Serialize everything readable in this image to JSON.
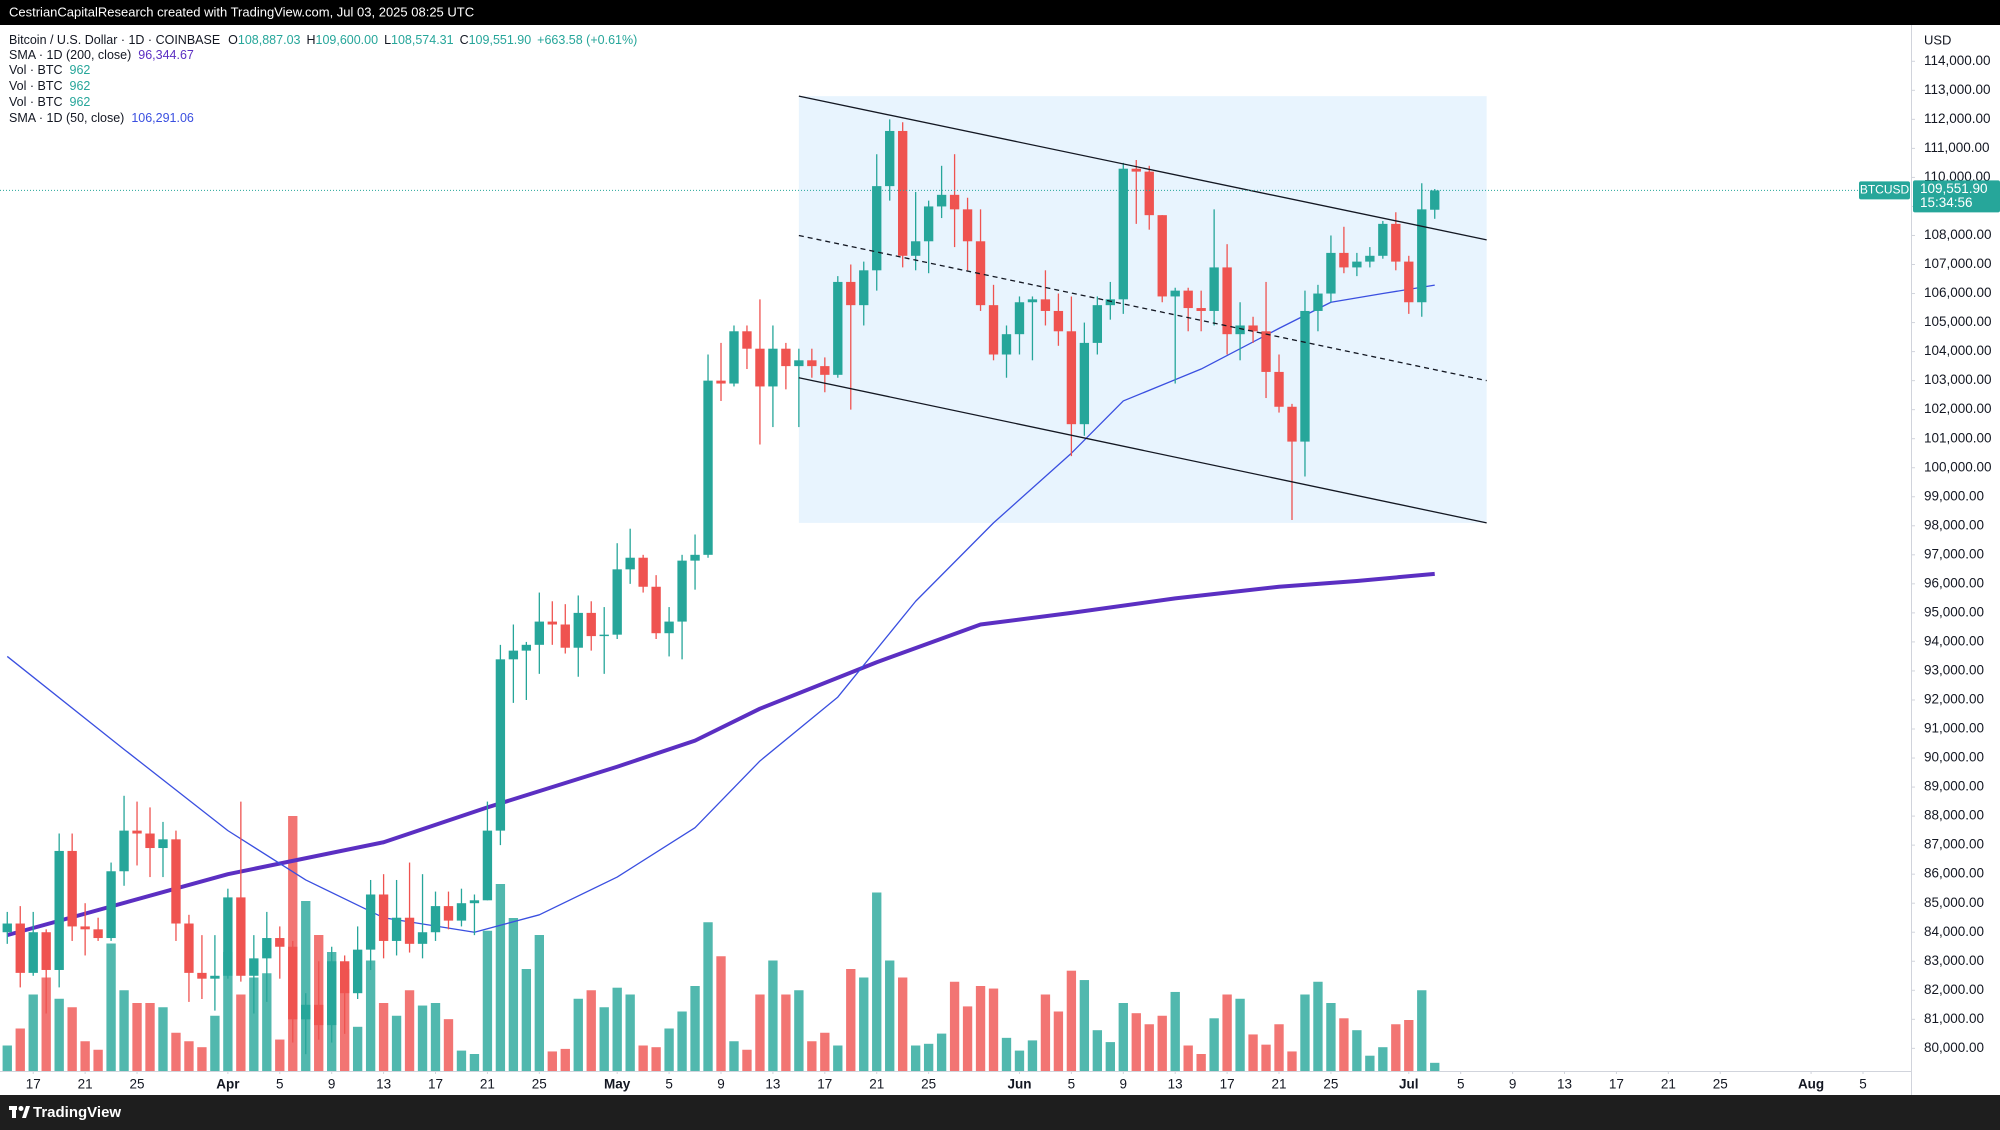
{
  "header": "CestrianCapitalResearch created with TradingView.com, Jul 03, 2025 08:25 UTC",
  "footer": "TradingView",
  "chart_data": {
    "type": "candlestick",
    "currency": "USD",
    "symbol": "Bitcoin / U.S. Dollar · 1D · COINBASE",
    "ohlc": [
      {
        "key": "O",
        "value_label": "108,887.03"
      },
      {
        "key": "H",
        "value_label": "109,600.00"
      },
      {
        "key": "L",
        "value_label": "108,574.31"
      },
      {
        "key": "C",
        "value_label": "109,551.90"
      }
    ],
    "change": "+663.58 (+0.61%)",
    "up_color": "#26a69a",
    "down_color": "#ef5350",
    "x": [
      -2,
      -1,
      0,
      1,
      2,
      3,
      4,
      5,
      6,
      7,
      8,
      9,
      10,
      11,
      12,
      13,
      14,
      15,
      16,
      17,
      18,
      19,
      20,
      21,
      22,
      23,
      24,
      25,
      26,
      27,
      28,
      29,
      30,
      31,
      32,
      33,
      34,
      35,
      36,
      37,
      38,
      39,
      40,
      41,
      42,
      43,
      44,
      45,
      46,
      47,
      48,
      49,
      50,
      51,
      52,
      53,
      54,
      55,
      56,
      57,
      58,
      59,
      60,
      61,
      62,
      63,
      64,
      65,
      66,
      67,
      68,
      69,
      70,
      71,
      72,
      73,
      74,
      75,
      76,
      77,
      78,
      79,
      80,
      81,
      82,
      83,
      84,
      85,
      86,
      87,
      88,
      89,
      90,
      91,
      92,
      93,
      94,
      95,
      96,
      97,
      98,
      99,
      100,
      101,
      102,
      103,
      104,
      105,
      106,
      107,
      108
    ],
    "open": [
      84000,
      84300,
      82600,
      84000,
      82700,
      86800,
      84200,
      84100,
      83800,
      86100,
      87500,
      87400,
      86900,
      87200,
      84300,
      82600,
      82400,
      82500,
      85200,
      82500,
      83100,
      83800,
      83500,
      81000,
      81500,
      80800,
      83000,
      81900,
      83400,
      85300,
      83700,
      84500,
      83600,
      84000,
      84900,
      84400,
      85000,
      85100,
      87500,
      93400,
      93700,
      93900,
      94700,
      94600,
      93800,
      95000,
      94200,
      94250,
      96500,
      96900,
      95900,
      94300,
      94700,
      96800,
      97000,
      103000,
      102900,
      104700,
      104100,
      102800,
      104100,
      103500,
      103700,
      103500,
      103200,
      106400,
      105600,
      106800,
      109700,
      111600,
      107300,
      107800,
      109000,
      109400,
      108900,
      107800,
      105600,
      103900,
      104600,
      105700,
      105800,
      105400,
      104700,
      101500,
      104300,
      105600,
      105800,
      110300,
      110200,
      108700,
      105900,
      106100,
      105500,
      105400,
      106900,
      104600,
      104900,
      104700,
      103300,
      102100,
      100900,
      105400,
      106000,
      107400,
      106900,
      107100,
      107300,
      108400,
      107100,
      105700,
      108887.03
    ],
    "high": [
      84700,
      84900,
      84700,
      84100,
      87400,
      87400,
      85000,
      84500,
      86400,
      88700,
      88500,
      88300,
      87800,
      87500,
      84600,
      83900,
      83900,
      85500,
      88500,
      83900,
      84700,
      84200,
      83700,
      81900,
      83000,
      83500,
      83200,
      84200,
      85800,
      86000,
      85800,
      86400,
      86000,
      85400,
      85400,
      85500,
      85300,
      88500,
      93900,
      94600,
      94000,
      95700,
      95400,
      95300,
      95600,
      95400,
      95200,
      97400,
      97900,
      97000,
      96300,
      95200,
      97000,
      97700,
      103900,
      104300,
      104900,
      104900,
      105800,
      104900,
      104300,
      104100,
      104100,
      103800,
      106600,
      107000,
      107100,
      110800,
      112000,
      111900,
      109500,
      109200,
      110400,
      110800,
      109300,
      108900,
      106300,
      104900,
      105900,
      105900,
      106800,
      106000,
      105900,
      105000,
      105900,
      106400,
      110500,
      110600,
      110400,
      108700,
      106200,
      106200,
      106100,
      108900,
      107700,
      105700,
      105200,
      106400,
      103900,
      102200,
      106100,
      106300,
      108000,
      108300,
      107400,
      107600,
      108500,
      108800,
      107300,
      109800,
      109600
    ],
    "low": [
      83600,
      82100,
      82500,
      81200,
      82100,
      83700,
      83200,
      83700,
      83700,
      85600,
      86300,
      85900,
      85900,
      83700,
      81600,
      81700,
      81300,
      82400,
      82300,
      81200,
      81600,
      82400,
      80200,
      79800,
      80300,
      80200,
      80500,
      81700,
      82700,
      83100,
      83200,
      83300,
      83100,
      83700,
      84100,
      84200,
      83900,
      85100,
      87000,
      91900,
      92000,
      92900,
      93900,
      93600,
      92800,
      93700,
      92900,
      94100,
      96000,
      95700,
      94100,
      93500,
      93400,
      95800,
      96900,
      102300,
      102800,
      103400,
      100800,
      101400,
      102700,
      101400,
      103100,
      102600,
      103100,
      102000,
      104900,
      106100,
      109200,
      106900,
      106800,
      106700,
      108600,
      107600,
      106800,
      105400,
      103700,
      103100,
      103900,
      103700,
      104900,
      104200,
      100400,
      101100,
      103900,
      105100,
      105300,
      108400,
      108200,
      105700,
      102900,
      104700,
      104700,
      104900,
      103900,
      103700,
      104300,
      102400,
      101900,
      98200,
      99700,
      104700,
      105700,
      106700,
      106600,
      106900,
      107200,
      106800,
      105300,
      105200,
      108574.31
    ],
    "close": [
      84300,
      82600,
      84000,
      82700,
      86800,
      84200,
      84100,
      83800,
      86100,
      87500,
      87400,
      86900,
      87200,
      84300,
      82600,
      82400,
      82500,
      85200,
      82500,
      83100,
      83800,
      83500,
      81000,
      81500,
      80800,
      83000,
      81900,
      83400,
      85300,
      83700,
      84500,
      83600,
      84000,
      84900,
      84400,
      85000,
      85100,
      87500,
      93400,
      93700,
      93900,
      94700,
      94600,
      93800,
      95000,
      94200,
      94250,
      96500,
      96900,
      95900,
      94300,
      94700,
      96800,
      97000,
      103000,
      102900,
      104700,
      104100,
      102800,
      104100,
      103500,
      103700,
      103500,
      103200,
      106400,
      105600,
      106800,
      109700,
      111600,
      107300,
      107800,
      109000,
      109400,
      108900,
      107800,
      105600,
      103900,
      104600,
      105700,
      105800,
      105400,
      104700,
      101500,
      104300,
      105600,
      105800,
      110300,
      110200,
      108700,
      105900,
      106100,
      105500,
      105400,
      106900,
      104600,
      104900,
      104700,
      103300,
      102100,
      100900,
      105400,
      106000,
      107400,
      106900,
      107100,
      107300,
      108400,
      107100,
      105700,
      108900,
      109551.9
    ],
    "volume": [
      3000,
      5000,
      9000,
      11000,
      8500,
      7500,
      3500,
      2500,
      15000,
      9500,
      8000,
      8000,
      7500,
      4500,
      3500,
      2800,
      6500,
      14000,
      9000,
      11000,
      11500,
      3700,
      30000,
      20000,
      16000,
      14000,
      12000,
      5200,
      13000,
      8000,
      6500,
      9500,
      7700,
      8000,
      6100,
      2400,
      2000,
      16500,
      22000,
      18000,
      12000,
      16000,
      2300,
      2600,
      8500,
      9500,
      7500,
      9800,
      9000,
      3000,
      2800,
      5000,
      7000,
      10000,
      17500,
      13500,
      3500,
      2500,
      9000,
      13000,
      9000,
      9500,
      3500,
      4500,
      3000,
      12000,
      11000,
      21000,
      13000,
      11000,
      3000,
      3200,
      4400,
      10500,
      7600,
      10000,
      9700,
      3900,
      2400,
      3600,
      9000,
      7000,
      11800,
      10700,
      4800,
      3400,
      8000,
      6800,
      5500,
      6500,
      9300,
      3000,
      2000,
      6200,
      9000,
      8500,
      4300,
      3100,
      5500,
      2300,
      9000,
      10500,
      8000,
      6200,
      4800,
      1800,
      2800,
      5500,
      6000,
      9500,
      962
    ],
    "vlim": [
      0,
      38000
    ],
    "indicators": [
      {
        "name": "SMA · 1D (200, close)",
        "value_label": "96,344.67",
        "color": "#5b2fc2",
        "width": 4,
        "x": [
          -2,
          15,
          27,
          35,
          45,
          51,
          56,
          65,
          73,
          80,
          88,
          96,
          102,
          108
        ],
        "values": [
          83900,
          86000,
          87100,
          88300,
          89700,
          90600,
          91700,
          93300,
          94600,
          95000,
          95500,
          95900,
          96100,
          96344.67
        ]
      },
      {
        "name": "Vol · BTC",
        "value_label": "962",
        "color": "#26a69a"
      },
      {
        "name": "Vol · BTC",
        "value_label": "962",
        "color": "#26a69a"
      },
      {
        "name": "Vol · BTC",
        "value_label": "962",
        "color": "#26a69a"
      },
      {
        "name": "SMA · 1D (50, close)",
        "value_label": "106,291.06",
        "color": "#3a4fe0",
        "width": 1.3,
        "x": [
          -2,
          7,
          15,
          21,
          27,
          34,
          39,
          45,
          51,
          56,
          62,
          68,
          74,
          80,
          84,
          90,
          96,
          100,
          104,
          108
        ],
        "values": [
          93500,
          90300,
          87500,
          85800,
          84500,
          84000,
          84600,
          85900,
          87600,
          89900,
          92100,
          95400,
          98100,
          100500,
          102300,
          103400,
          104800,
          105700,
          106000,
          106291.06
        ]
      }
    ],
    "channel": {
      "x": [
        59,
        112
      ],
      "upper": [
        112800,
        107850
      ],
      "middle": [
        108000,
        103000
      ],
      "lower": [
        103100,
        98100
      ]
    },
    "last_price": {
      "symbol": "BTCUSD",
      "value": 109551.9,
      "label": "109,551.90",
      "countdown": "15:34:56"
    },
    "xlim": [
      -2.56,
      144.7
    ],
    "ylim": [
      79220,
      115250
    ],
    "xticks": [
      {
        "value": 0,
        "label": "17"
      },
      {
        "value": 4,
        "label": "21"
      },
      {
        "value": 8,
        "label": "25"
      },
      {
        "value": 15,
        "label": "Apr"
      },
      {
        "value": 19,
        "label": "5"
      },
      {
        "value": 23,
        "label": "9"
      },
      {
        "value": 27,
        "label": "13"
      },
      {
        "value": 31,
        "label": "17"
      },
      {
        "value": 35,
        "label": "21"
      },
      {
        "value": 39,
        "label": "25"
      },
      {
        "value": 45,
        "label": "May"
      },
      {
        "value": 49,
        "label": "5"
      },
      {
        "value": 53,
        "label": "9"
      },
      {
        "value": 57,
        "label": "13"
      },
      {
        "value": 61,
        "label": "17"
      },
      {
        "value": 65,
        "label": "21"
      },
      {
        "value": 69,
        "label": "25"
      },
      {
        "value": 76,
        "label": "Jun"
      },
      {
        "value": 80,
        "label": "5"
      },
      {
        "value": 84,
        "label": "9"
      },
      {
        "value": 88,
        "label": "13"
      },
      {
        "value": 92,
        "label": "17"
      },
      {
        "value": 96,
        "label": "21"
      },
      {
        "value": 100,
        "label": "25"
      },
      {
        "value": 106,
        "label": "Jul"
      },
      {
        "value": 110,
        "label": "5"
      },
      {
        "value": 114,
        "label": "9"
      },
      {
        "value": 118,
        "label": "13"
      },
      {
        "value": 122,
        "label": "17"
      },
      {
        "value": 126,
        "label": "21"
      },
      {
        "value": 130,
        "label": "25"
      },
      {
        "value": 137,
        "label": "Aug"
      },
      {
        "value": 141,
        "label": "5"
      }
    ],
    "yticks": [
      {
        "value": 114000,
        "label": "114,000.00"
      },
      {
        "value": 113000,
        "label": "113,000.00"
      },
      {
        "value": 112000,
        "label": "112,000.00"
      },
      {
        "value": 111000,
        "label": "111,000.00"
      },
      {
        "value": 110000,
        "label": "110,000.00"
      },
      {
        "value": 109000,
        "label": "109,000.00"
      },
      {
        "value": 108000,
        "label": "108,000.00"
      },
      {
        "value": 107000,
        "label": "107,000.00"
      },
      {
        "value": 106000,
        "label": "106,000.00"
      },
      {
        "value": 105000,
        "label": "105,000.00"
      },
      {
        "value": 104000,
        "label": "104,000.00"
      },
      {
        "value": 103000,
        "label": "103,000.00"
      },
      {
        "value": 102000,
        "label": "102,000.00"
      },
      {
        "value": 101000,
        "label": "101,000.00"
      },
      {
        "value": 100000,
        "label": "100,000.00"
      },
      {
        "value": 99000,
        "label": "99,000.00"
      },
      {
        "value": 98000,
        "label": "98,000.00"
      },
      {
        "value": 97000,
        "label": "97,000.00"
      },
      {
        "value": 96000,
        "label": "96,000.00"
      },
      {
        "value": 95000,
        "label": "95,000.00"
      },
      {
        "value": 94000,
        "label": "94,000.00"
      },
      {
        "value": 93000,
        "label": "93,000.00"
      },
      {
        "value": 92000,
        "label": "92,000.00"
      },
      {
        "value": 91000,
        "label": "91,000.00"
      },
      {
        "value": 90000,
        "label": "90,000.00"
      },
      {
        "value": 89000,
        "label": "89,000.00"
      },
      {
        "value": 88000,
        "label": "88,000.00"
      },
      {
        "value": 87000,
        "label": "87,000.00"
      },
      {
        "value": 86000,
        "label": "86,000.00"
      },
      {
        "value": 85000,
        "label": "85,000.00"
      },
      {
        "value": 84000,
        "label": "84,000.00"
      },
      {
        "value": 83000,
        "label": "83,000.00"
      },
      {
        "value": 82000,
        "label": "82,000.00"
      },
      {
        "value": 81000,
        "label": "81,000.00"
      },
      {
        "value": 80000,
        "label": "80,000.00"
      }
    ],
    "grid": false
  }
}
